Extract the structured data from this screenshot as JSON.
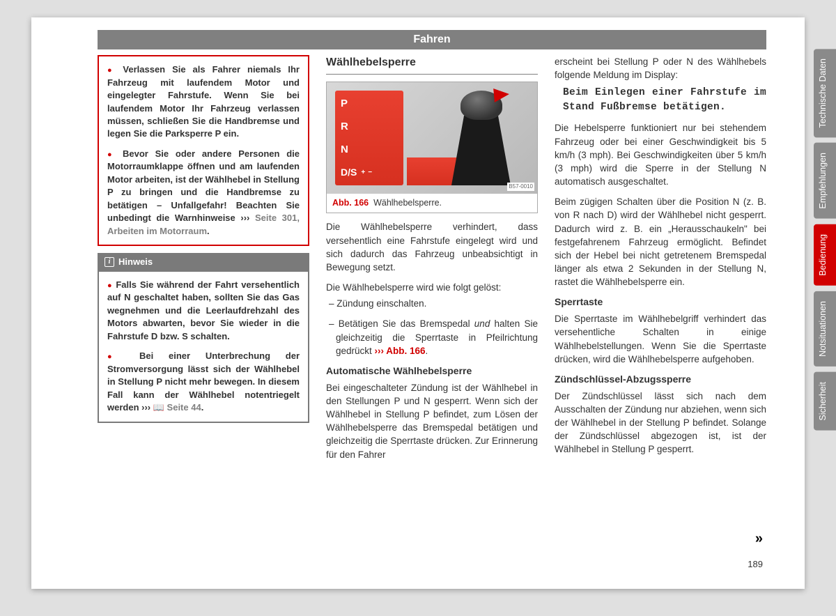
{
  "header": {
    "title": "Fahren"
  },
  "tabs": [
    {
      "label": "Technische Daten",
      "active": false
    },
    {
      "label": "Empfehlungen",
      "active": false
    },
    {
      "label": "Bedienung",
      "active": true
    },
    {
      "label": "Notsituationen",
      "active": false
    },
    {
      "label": "Sicherheit",
      "active": false
    }
  ],
  "col1": {
    "warn": {
      "p1": "Verlassen Sie als Fahrer niemals Ihr Fahrzeug mit laufendem Motor und eingelegter Fahrstufe. Wenn Sie bei laufendem Motor Ihr Fahrzeug verlassen müssen, schließen Sie die Handbremse und legen Sie die Parksperre P ein.",
      "p2_a": "Bevor Sie oder andere Personen die Motorraumklappe öffnen und am laufenden Motor arbeiten, ist der Wählhebel in Stellung P zu bringen und die Handbremse zu betätigen – Unfallgefahr! Beachten Sie unbedingt die Warnhinweise ››› ",
      "p2_ref": "Seite 301, Arbeiten im Motorraum",
      "p2_b": "."
    },
    "hint": {
      "title": "Hinweis",
      "p1": "Falls Sie während der Fahrt versehentlich auf N geschaltet haben, sollten Sie das Gas wegnehmen und die Leerlaufdrehzahl des Motors abwarten, bevor Sie wieder in die Fahrstufe D bzw. S schalten.",
      "p2_a": "Bei einer Unterbrechung der Stromversorgung lässt sich der Wählhebel in Stellung P nicht mehr bewegen. In diesem Fall kann der Wählhebel notentriegelt werden ››› ",
      "p2_ref": "Seite 44",
      "p2_b": "."
    }
  },
  "col2": {
    "title": "Wählhebelsperre",
    "figure": {
      "labels": {
        "p": "P",
        "r": "R",
        "n": "N",
        "ds": "D/S",
        "plus": "+",
        "minus": "−"
      },
      "ref": "B57-0010",
      "caption_abb": "Abb. 166",
      "caption_text": "Wählhebelsperre.",
      "colors": {
        "panel": "#e84030",
        "arrow": "#d10000"
      }
    },
    "p1": "Die Wählhebelsperre verhindert, dass versehentlich eine Fahrstufe eingelegt wird und sich dadurch das Fahrzeug unbeabsichtigt in Bewegung setzt.",
    "p2": "Die Wählhebelsperre wird wie folgt gelöst:",
    "d1": "Zündung einschalten.",
    "d2_a": "Betätigen Sie das Bremspedal ",
    "d2_und": "und",
    "d2_b": " halten Sie gleichzeitig die Sperrtaste in Pfeilrichtung gedrückt ",
    "d2_ref": "››› Abb. 166",
    "d2_c": ".",
    "sh1": "Automatische Wählhebelsperre",
    "p3": "Bei eingeschalteter Zündung ist der Wählhebel in den Stellungen P und N gesperrt. Wenn sich der Wählhebel in Stellung P befindet, zum Lösen der Wählhebelsperre das Bremspedal betätigen und gleichzeitig die Sperrtaste drücken. Zur Erinnerung für den Fahrer"
  },
  "col3": {
    "p0": "erscheint bei Stellung P oder N des Wählhebels folgende Meldung im Display:",
    "msg": "Beim Einlegen einer Fahrstufe im Stand Fußbremse betätigen.",
    "p1": "Die Hebelsperre funktioniert nur bei stehendem Fahrzeug oder bei einer Geschwindigkeit bis 5 km/h (3 mph). Bei Geschwindigkeiten über 5 km/h (3 mph) wird die Sperre in der Stellung N automatisch ausgeschaltet.",
    "p2": "Beim zügigen Schalten über die Position N (z. B. von R nach D) wird der Wählhebel nicht gesperrt. Dadurch wird z. B. ein „Herausschaukeln\" bei festgefahrenem Fahrzeug ermöglicht. Befindet sich der Hebel bei nicht getretenem Bremspedal länger als etwa 2 Sekunden in der Stellung N, rastet die Wählhebelsperre ein.",
    "sh1": "Sperrtaste",
    "p3": "Die Sperrtaste im Wählhebelgriff verhindert das versehentliche Schalten in einige Wählhebelstellungen. Wenn Sie die Sperrtaste drücken, wird die Wählhebelsperre aufgehoben.",
    "sh2": "Zündschlüssel-Abzugssperre",
    "p4": "Der Zündschlüssel lässt sich nach dem Ausschalten der Zündung nur abziehen, wenn sich der Wählhebel in der Stellung P befindet. Solange der Zündschlüssel abgezogen ist, ist der Wählhebel in Stellung P gesperrt."
  },
  "pagenum": "189",
  "continue": "»"
}
